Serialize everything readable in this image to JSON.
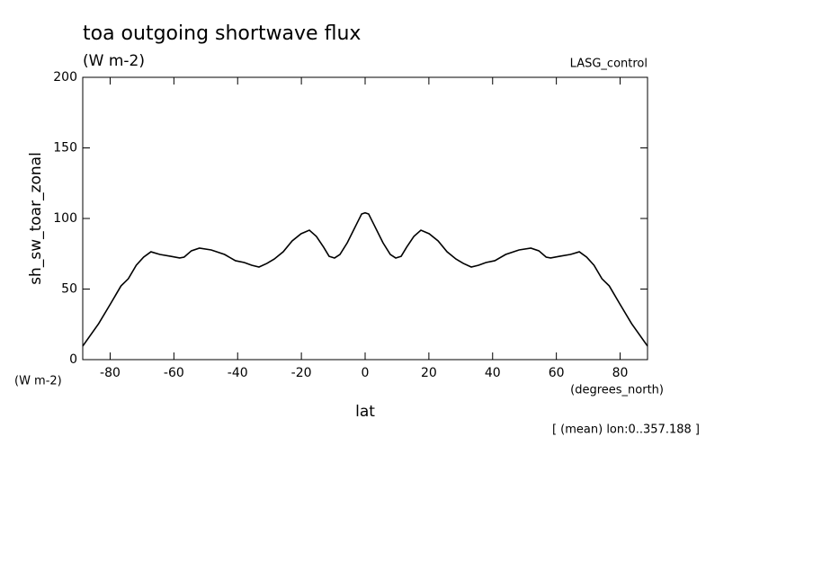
{
  "chart_data": {
    "type": "line",
    "title": "toa outgoing shortwave flux",
    "units": "(W m-2)",
    "dataset": "LASG_control",
    "y_label": "sh_sw_toar_zonal",
    "y_units": "(W m-2)",
    "x_label": "lat",
    "x_units": "(degrees_north)",
    "footnote": "[ (mean) lon:0..357.188 ]",
    "x": [
      -88.6,
      -83.6,
      -79.9,
      -76.6,
      -74.3,
      -71.8,
      -69.5,
      -67.2,
      -64.4,
      -61.0,
      -58.2,
      -56.8,
      -54.5,
      -52.0,
      -48.3,
      -44.1,
      -40.7,
      -37.9,
      -35.6,
      -33.3,
      -30.8,
      -28.5,
      -25.7,
      -22.9,
      -20.1,
      -17.5,
      -15.3,
      -13.0,
      -11.3,
      -9.6,
      -7.9,
      -5.6,
      -2.8,
      -1.1,
      0,
      1.1,
      2.8,
      5.6,
      7.9,
      9.6,
      11.3,
      13.0,
      15.3,
      17.5,
      20.1,
      22.9,
      25.7,
      28.5,
      30.8,
      33.3,
      35.6,
      37.9,
      40.7,
      44.1,
      48.3,
      52.0,
      54.5,
      56.8,
      58.2,
      61.0,
      64.4,
      67.2,
      69.5,
      71.8,
      74.3,
      76.6,
      79.9,
      83.6,
      88.6
    ],
    "series": [
      {
        "color": "#000000",
        "values": [
          9.6,
          25.5,
          39.5,
          52.2,
          57.3,
          66.9,
          72.6,
          76.4,
          74.5,
          73.2,
          72.0,
          72.6,
          77.1,
          79.0,
          77.7,
          74.5,
          70.1,
          68.8,
          66.9,
          65.6,
          68.2,
          71.3,
          76.4,
          84.1,
          89.2,
          91.7,
          87.3,
          79.6,
          73.2,
          72.0,
          74.5,
          82.8,
          95.5,
          103.2,
          104.0,
          103.2,
          95.5,
          82.8,
          74.5,
          72.0,
          73.2,
          79.6,
          87.3,
          91.7,
          89.2,
          84.1,
          76.4,
          71.3,
          68.2,
          65.6,
          66.9,
          68.8,
          70.1,
          74.5,
          77.7,
          79.0,
          77.1,
          72.6,
          72.0,
          73.2,
          74.5,
          76.4,
          72.6,
          66.9,
          57.3,
          52.2,
          39.5,
          25.5,
          9.6
        ]
      }
    ],
    "xlim": [
      -88.6,
      88.6
    ],
    "xticks": [
      -80,
      -60,
      -40,
      -20,
      0,
      20,
      40,
      60,
      80
    ],
    "ylim": [
      0,
      200
    ],
    "yticks": [
      0,
      50,
      100,
      150,
      200
    ]
  }
}
